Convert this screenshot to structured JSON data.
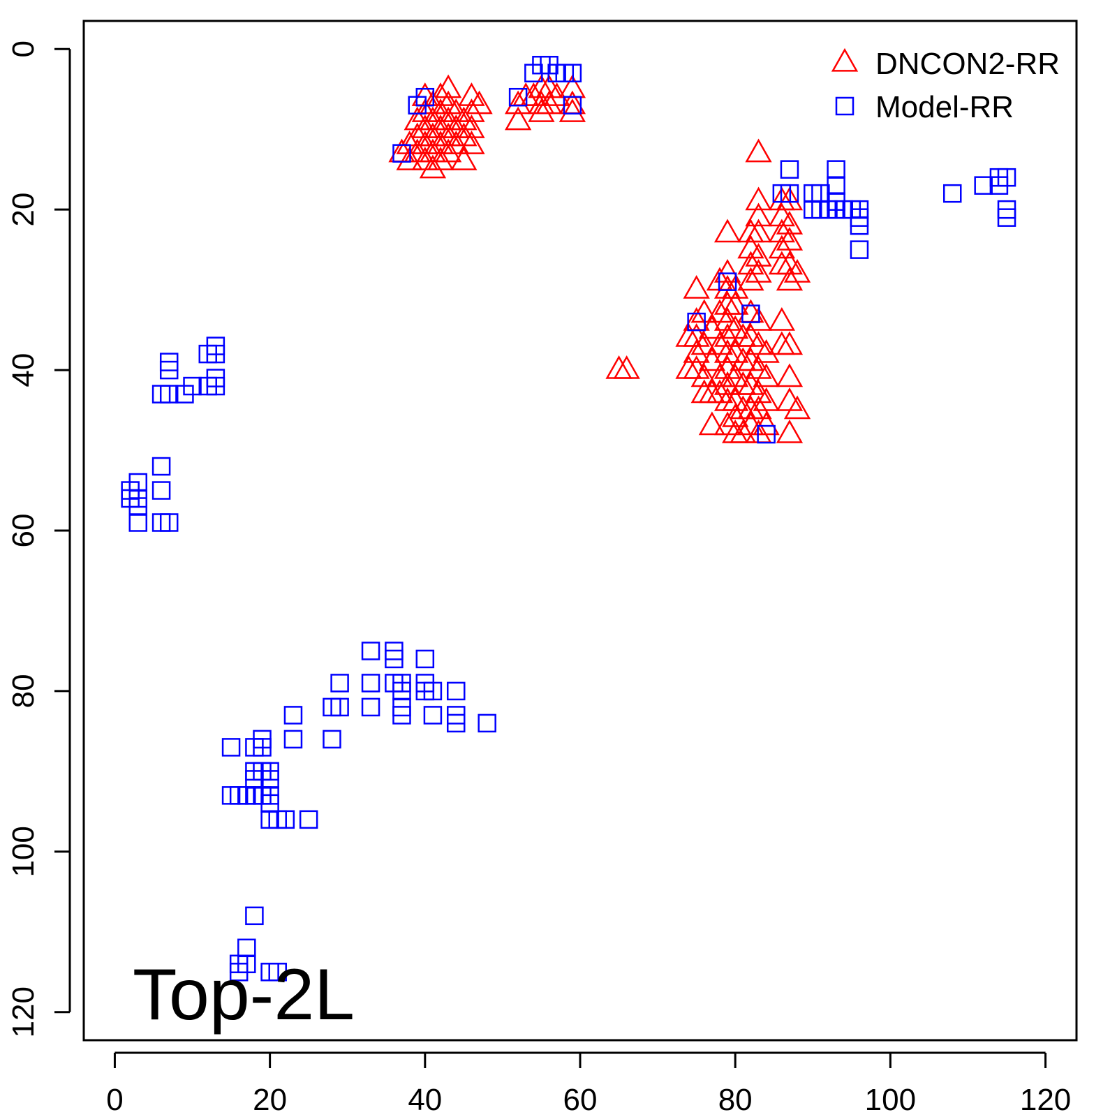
{
  "chart_data": {
    "type": "scatter",
    "title": "",
    "xlabel": "",
    "ylabel": "",
    "xlim": [
      -4,
      124
    ],
    "ylim": [
      -3.5,
      123.5
    ],
    "y_reversed": true,
    "xticks": [
      0,
      20,
      40,
      60,
      80,
      100,
      120
    ],
    "yticks": [
      0,
      20,
      40,
      60,
      80,
      100,
      120
    ],
    "xtick_labels": [
      "0",
      "20",
      "40",
      "60",
      "80",
      "100",
      "120"
    ],
    "ytick_labels": [
      "0",
      "20",
      "40",
      "60",
      "80",
      "100",
      "120"
    ],
    "grid": false,
    "legend_position": "top-right",
    "annotation": "Top-2L",
    "series": [
      {
        "name": "DNCON2-RR",
        "marker": "triangle",
        "color": "#ff0000",
        "points": [
          [
            37,
            13
          ],
          [
            38,
            12
          ],
          [
            38,
            14
          ],
          [
            39,
            9
          ],
          [
            39,
            11
          ],
          [
            39,
            13
          ],
          [
            40,
            6
          ],
          [
            40,
            8
          ],
          [
            40,
            10
          ],
          [
            40,
            12
          ],
          [
            40,
            14
          ],
          [
            41,
            7
          ],
          [
            41,
            9
          ],
          [
            41,
            11
          ],
          [
            41,
            13
          ],
          [
            41,
            15
          ],
          [
            42,
            6
          ],
          [
            42,
            8
          ],
          [
            42,
            10
          ],
          [
            42,
            12
          ],
          [
            42,
            14
          ],
          [
            43,
            5
          ],
          [
            43,
            7
          ],
          [
            43,
            9
          ],
          [
            43,
            11
          ],
          [
            43,
            13
          ],
          [
            44,
            8
          ],
          [
            44,
            10
          ],
          [
            44,
            12
          ],
          [
            45,
            9
          ],
          [
            45,
            11
          ],
          [
            45,
            14
          ],
          [
            46,
            6
          ],
          [
            46,
            8
          ],
          [
            46,
            10
          ],
          [
            46,
            12
          ],
          [
            47,
            7
          ],
          [
            52,
            7
          ],
          [
            52,
            9
          ],
          [
            53,
            6
          ],
          [
            54,
            6
          ],
          [
            55,
            5
          ],
          [
            55,
            7
          ],
          [
            55,
            8
          ],
          [
            56,
            5
          ],
          [
            56,
            7
          ],
          [
            57,
            6
          ],
          [
            59,
            5
          ],
          [
            59,
            7
          ],
          [
            59,
            8
          ],
          [
            83,
            13
          ],
          [
            83,
            19
          ],
          [
            79,
            23
          ],
          [
            82,
            23
          ],
          [
            83,
            21
          ],
          [
            83,
            23
          ],
          [
            82,
            25
          ],
          [
            82,
            27
          ],
          [
            83,
            26
          ],
          [
            82,
            29
          ],
          [
            83,
            28
          ],
          [
            86,
            19
          ],
          [
            86,
            21
          ],
          [
            86,
            23
          ],
          [
            86,
            25
          ],
          [
            86,
            27
          ],
          [
            87,
            19
          ],
          [
            87,
            22
          ],
          [
            87,
            24
          ],
          [
            87,
            27
          ],
          [
            87,
            29
          ],
          [
            88,
            28
          ],
          [
            65,
            40
          ],
          [
            66,
            40
          ],
          [
            75,
            30
          ],
          [
            75,
            34
          ],
          [
            75,
            36
          ],
          [
            75,
            38
          ],
          [
            75,
            40
          ],
          [
            74,
            36
          ],
          [
            74,
            40
          ],
          [
            76,
            33
          ],
          [
            76,
            37
          ],
          [
            76,
            41
          ],
          [
            76,
            43
          ],
          [
            77,
            35
          ],
          [
            77,
            39
          ],
          [
            77,
            43
          ],
          [
            77,
            47
          ],
          [
            78,
            29
          ],
          [
            78,
            33
          ],
          [
            78,
            37
          ],
          [
            78,
            41
          ],
          [
            78,
            43
          ],
          [
            79,
            28
          ],
          [
            79,
            30
          ],
          [
            79,
            32
          ],
          [
            79,
            34
          ],
          [
            79,
            36
          ],
          [
            79,
            38
          ],
          [
            79,
            40
          ],
          [
            79,
            42
          ],
          [
            79,
            44
          ],
          [
            79,
            47
          ],
          [
            80,
            30
          ],
          [
            80,
            32
          ],
          [
            80,
            35
          ],
          [
            80,
            38
          ],
          [
            80,
            41
          ],
          [
            80,
            44
          ],
          [
            80,
            46
          ],
          [
            80,
            48
          ],
          [
            81,
            36
          ],
          [
            81,
            39
          ],
          [
            81,
            42
          ],
          [
            81,
            45
          ],
          [
            81,
            48
          ],
          [
            82,
            33
          ],
          [
            82,
            36
          ],
          [
            82,
            39
          ],
          [
            82,
            42
          ],
          [
            82,
            45
          ],
          [
            82,
            47
          ],
          [
            83,
            34
          ],
          [
            83,
            37
          ],
          [
            83,
            40
          ],
          [
            83,
            43
          ],
          [
            83,
            45
          ],
          [
            83,
            48
          ],
          [
            84,
            38
          ],
          [
            84,
            41
          ],
          [
            84,
            44
          ],
          [
            84,
            47
          ],
          [
            86,
            34
          ],
          [
            86,
            37
          ],
          [
            87,
            37
          ],
          [
            87,
            41
          ],
          [
            87,
            44
          ],
          [
            87,
            48
          ],
          [
            88,
            45
          ]
        ]
      },
      {
        "name": "Model-RR",
        "marker": "square",
        "color": "#0000ff",
        "points": [
          [
            55,
            2
          ],
          [
            56,
            2
          ],
          [
            54,
            3
          ],
          [
            57,
            3
          ],
          [
            58,
            3
          ],
          [
            59,
            3
          ],
          [
            40,
            6
          ],
          [
            39,
            7
          ],
          [
            37,
            13
          ],
          [
            52,
            6
          ],
          [
            59,
            7
          ],
          [
            87,
            15
          ],
          [
            86,
            18
          ],
          [
            87,
            18
          ],
          [
            90,
            18
          ],
          [
            91,
            18
          ],
          [
            93,
            15
          ],
          [
            93,
            17
          ],
          [
            93,
            19
          ],
          [
            93,
            20
          ],
          [
            90,
            20
          ],
          [
            91,
            20
          ],
          [
            92,
            20
          ],
          [
            94,
            20
          ],
          [
            95,
            20
          ],
          [
            96,
            20
          ],
          [
            96,
            21
          ],
          [
            96,
            22
          ],
          [
            96,
            25
          ],
          [
            108,
            18
          ],
          [
            112,
            17
          ],
          [
            114,
            16
          ],
          [
            115,
            16
          ],
          [
            114,
            17
          ],
          [
            115,
            20
          ],
          [
            115,
            21
          ],
          [
            13,
            37
          ],
          [
            13,
            38
          ],
          [
            12,
            38
          ],
          [
            13,
            41
          ],
          [
            13,
            42
          ],
          [
            12,
            42
          ],
          [
            7,
            39
          ],
          [
            7,
            40
          ],
          [
            10,
            42
          ],
          [
            6,
            43
          ],
          [
            7,
            43
          ],
          [
            9,
            43
          ],
          [
            6,
            52
          ],
          [
            6,
            55
          ],
          [
            2,
            55
          ],
          [
            2,
            56
          ],
          [
            3,
            54
          ],
          [
            3,
            56
          ],
          [
            3,
            57
          ],
          [
            3,
            59
          ],
          [
            6,
            59
          ],
          [
            7,
            59
          ],
          [
            33,
            75
          ],
          [
            36,
            75
          ],
          [
            36,
            76
          ],
          [
            40,
            76
          ],
          [
            29,
            79
          ],
          [
            33,
            79
          ],
          [
            36,
            79
          ],
          [
            37,
            79
          ],
          [
            40,
            79
          ],
          [
            37,
            80
          ],
          [
            40,
            80
          ],
          [
            41,
            80
          ],
          [
            44,
            80
          ],
          [
            28,
            82
          ],
          [
            29,
            82
          ],
          [
            33,
            82
          ],
          [
            37,
            82
          ],
          [
            37,
            83
          ],
          [
            41,
            83
          ],
          [
            44,
            83
          ],
          [
            44,
            84
          ],
          [
            48,
            84
          ],
          [
            23,
            83
          ],
          [
            23,
            86
          ],
          [
            28,
            86
          ],
          [
            15,
            87
          ],
          [
            18,
            87
          ],
          [
            19,
            86
          ],
          [
            19,
            87
          ],
          [
            18,
            90
          ],
          [
            19,
            90
          ],
          [
            20,
            90
          ],
          [
            18,
            91
          ],
          [
            20,
            91
          ],
          [
            15,
            93
          ],
          [
            16,
            93
          ],
          [
            17,
            93
          ],
          [
            18,
            93
          ],
          [
            19,
            93
          ],
          [
            20,
            93
          ],
          [
            20,
            94
          ],
          [
            20,
            96
          ],
          [
            21,
            96
          ],
          [
            22,
            96
          ],
          [
            25,
            96
          ],
          [
            18,
            108
          ],
          [
            17,
            112
          ],
          [
            16,
            114
          ],
          [
            16,
            115
          ],
          [
            17,
            114
          ],
          [
            20,
            115
          ],
          [
            21,
            115
          ],
          [
            75,
            34
          ],
          [
            79,
            29
          ],
          [
            82,
            33
          ],
          [
            84,
            48
          ]
        ]
      }
    ]
  }
}
